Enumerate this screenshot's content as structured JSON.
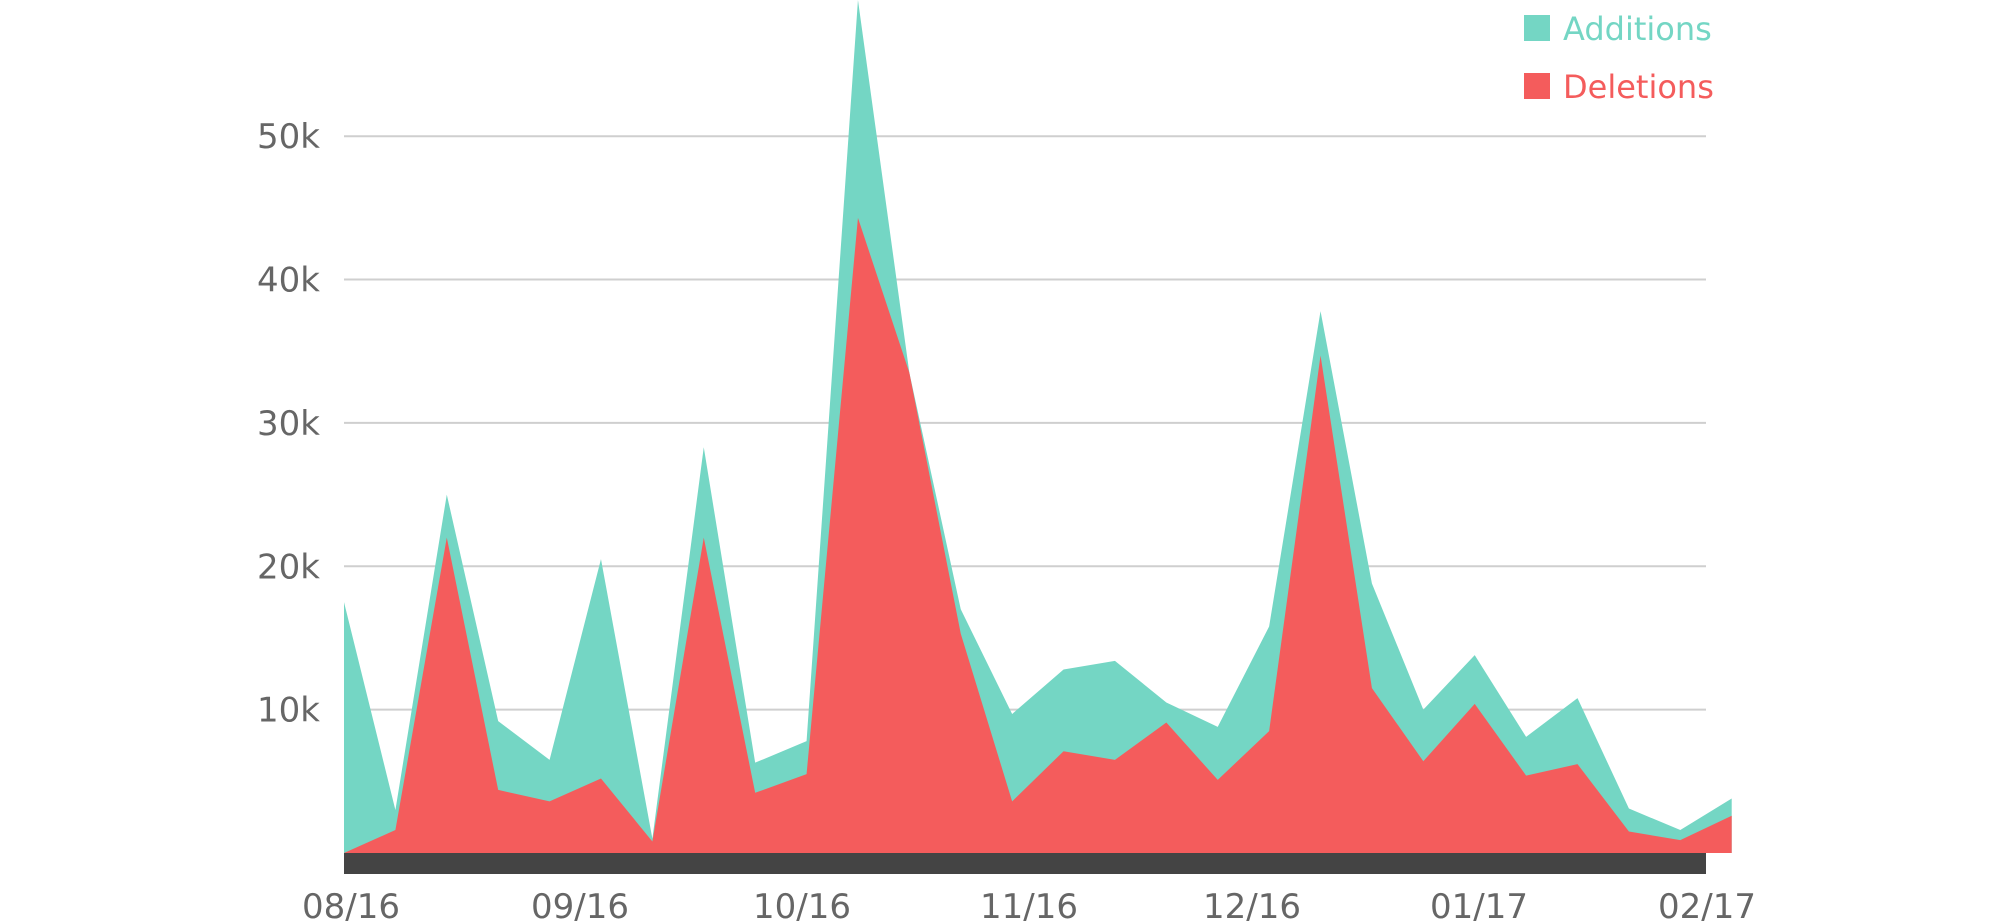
{
  "chart_data": {
    "type": "area",
    "x_tick_labels": [
      "08/16",
      "09/16",
      "10/16",
      "11/16",
      "12/16",
      "01/17",
      "02/17"
    ],
    "y_tick_labels": [
      "10k",
      "20k",
      "30k",
      "40k",
      "50k"
    ],
    "y_tick_values": [
      10000,
      20000,
      30000,
      40000,
      50000
    ],
    "ylim": [
      0,
      59500
    ],
    "xlim": [
      0,
      26.5
    ],
    "grid": true,
    "legend_position": "top-right",
    "series": [
      {
        "name": "Additions",
        "color": "#74d6c4",
        "values": [
          17500,
          3000,
          25000,
          9200,
          6500,
          20500,
          1000,
          28300,
          6300,
          7800,
          59500,
          33500,
          17000,
          9700,
          12800,
          13400,
          10500,
          8800,
          15800,
          37800,
          18800,
          10000,
          13800,
          8100,
          10800,
          3100,
          1600,
          3800
        ]
      },
      {
        "name": "Deletions",
        "color": "#f45c5c",
        "values": [
          0,
          1600,
          22000,
          4400,
          3600,
          5200,
          800,
          22000,
          4200,
          5500,
          44300,
          33500,
          15300,
          3600,
          7100,
          6500,
          9100,
          5100,
          8500,
          34700,
          11500,
          6400,
          10400,
          5400,
          6200,
          1500,
          900,
          2600
        ]
      }
    ]
  }
}
